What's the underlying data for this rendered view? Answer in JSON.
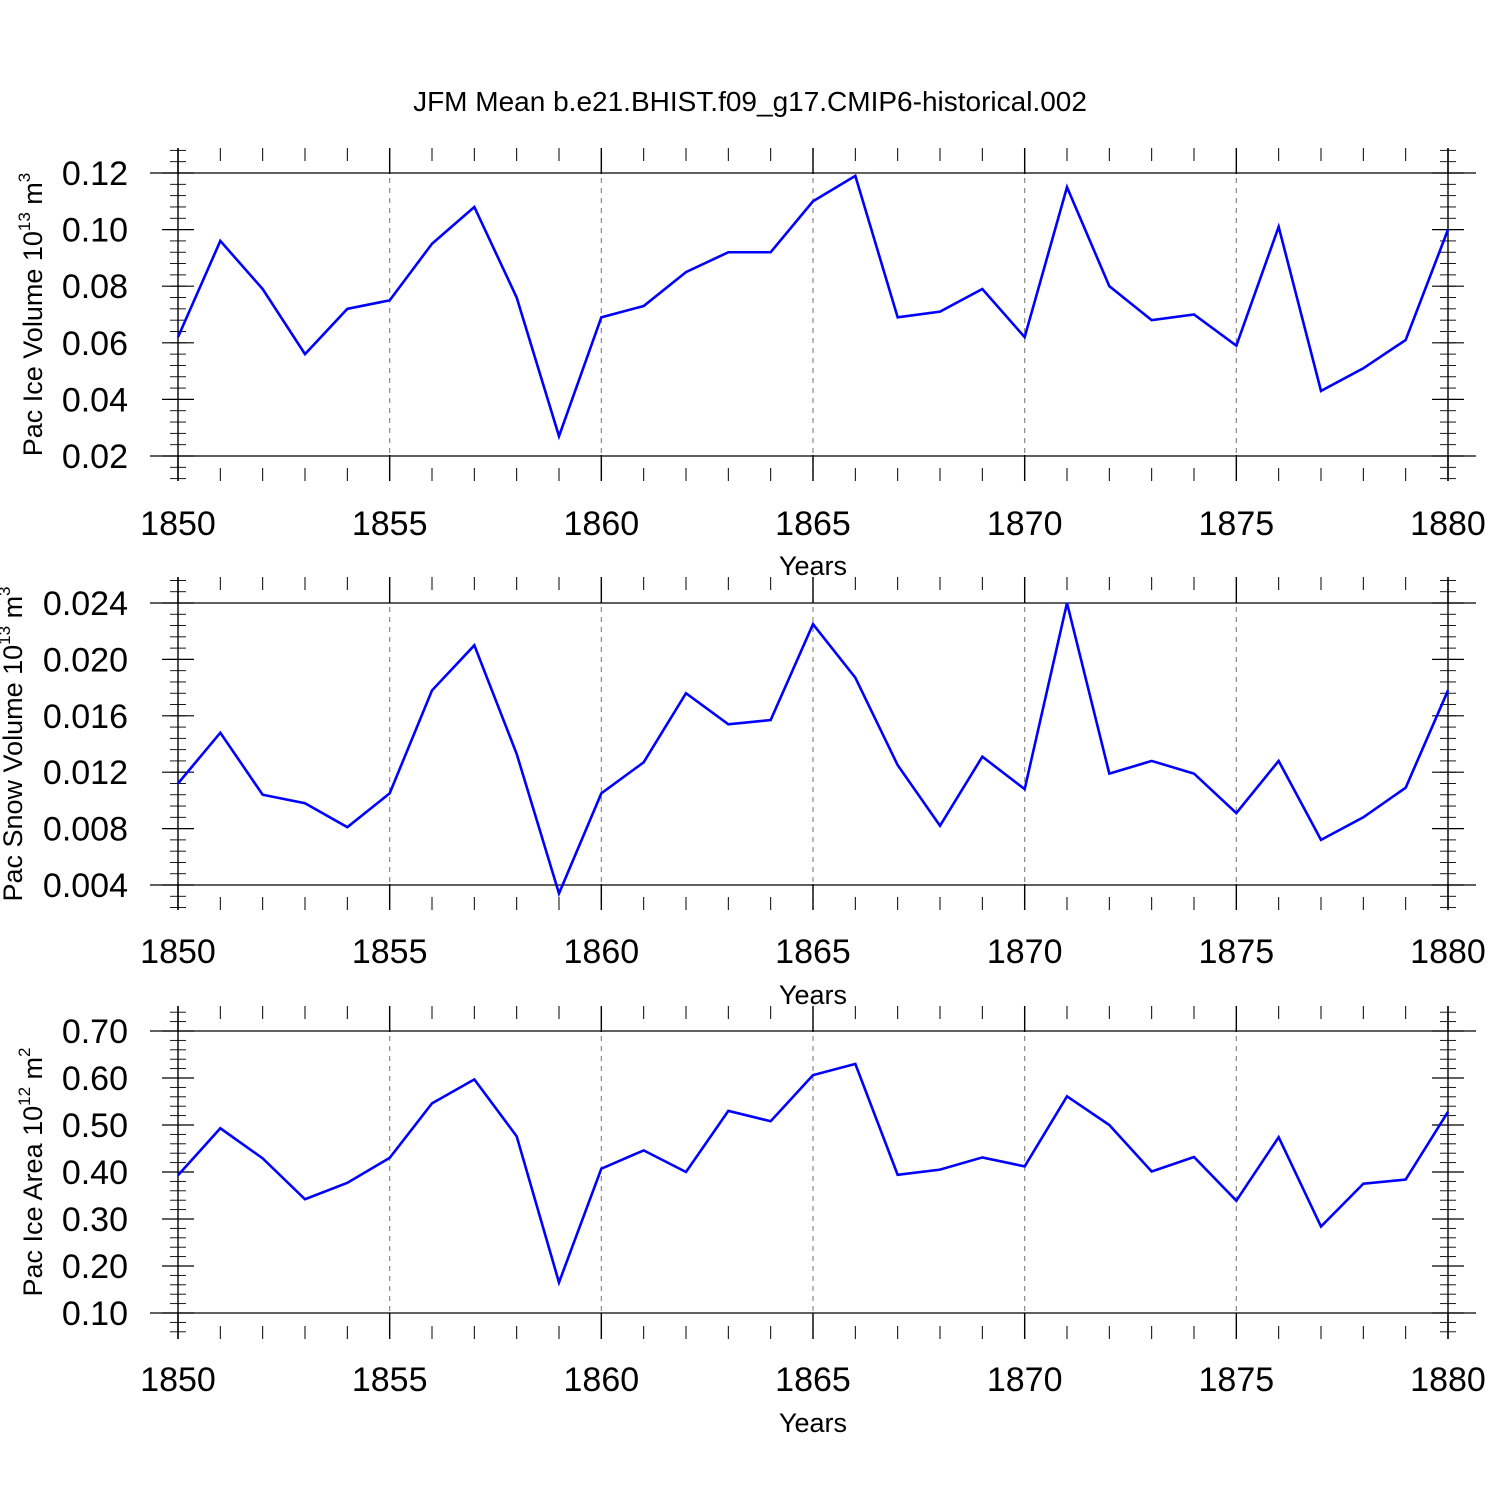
{
  "title": "JFM Mean b.e21.BHIST.f09_g17.CMIP6-historical.002",
  "colors": {
    "series": "#0000ff",
    "axis": "#000000",
    "grid": "#888888"
  },
  "chart_data": [
    {
      "type": "line",
      "title": "JFM Mean b.e21.BHIST.f09_g17.CMIP6-historical.002",
      "xlabel": "Years",
      "ylabel": {
        "text": "Pac Ice Volume 10",
        "exponent": "13",
        "unit": " m",
        "unit_exponent": "3"
      },
      "xlim": [
        1850,
        1880
      ],
      "ylim": [
        0.02,
        0.12
      ],
      "yticks": [
        "0.02",
        "0.04",
        "0.06",
        "0.08",
        "0.10",
        "0.12"
      ],
      "xticks": [
        "1850",
        "1855",
        "1860",
        "1865",
        "1870",
        "1875",
        "1880"
      ],
      "grid": "vertical dashed at major x ticks",
      "x": [
        1850,
        1851,
        1852,
        1853,
        1854,
        1855,
        1856,
        1857,
        1858,
        1859,
        1860,
        1861,
        1862,
        1863,
        1864,
        1865,
        1866,
        1867,
        1868,
        1869,
        1870,
        1871,
        1872,
        1873,
        1874,
        1875,
        1876,
        1877,
        1878,
        1879,
        1880
      ],
      "series": [
        {
          "values": [
            0.062,
            0.096,
            0.079,
            0.056,
            0.072,
            0.075,
            0.095,
            0.108,
            0.076,
            0.027,
            0.069,
            0.073,
            0.085,
            0.092,
            0.092,
            0.11,
            0.119,
            0.069,
            0.071,
            0.079,
            0.062,
            0.115,
            0.08,
            0.068,
            0.07,
            0.059,
            0.101,
            0.043,
            0.051,
            0.061,
            0.1
          ]
        }
      ]
    },
    {
      "type": "line",
      "xlabel": "Years",
      "ylabel": {
        "text": "Pac Snow Volume 10",
        "exponent": "13",
        "unit": " m",
        "unit_exponent": "3"
      },
      "xlim": [
        1850,
        1880
      ],
      "ylim": [
        0.003,
        0.024
      ],
      "yticks": [
        "0.004",
        "0.008",
        "0.012",
        "0.016",
        "0.020",
        "0.024"
      ],
      "xticks": [
        "1850",
        "1855",
        "1860",
        "1865",
        "1870",
        "1875",
        "1880"
      ],
      "grid": "vertical dashed at major x ticks",
      "x": [
        1850,
        1851,
        1852,
        1853,
        1854,
        1855,
        1856,
        1857,
        1858,
        1859,
        1860,
        1861,
        1862,
        1863,
        1864,
        1865,
        1866,
        1867,
        1868,
        1869,
        1870,
        1871,
        1872,
        1873,
        1874,
        1875,
        1876,
        1877,
        1878,
        1879,
        1880
      ],
      "series": [
        {
          "values": [
            0.0112,
            0.0148,
            0.0104,
            0.0098,
            0.0081,
            0.0105,
            0.0178,
            0.021,
            0.0133,
            0.0034,
            0.0105,
            0.0127,
            0.0176,
            0.0154,
            0.0157,
            0.0225,
            0.0187,
            0.0125,
            0.0082,
            0.0131,
            0.0108,
            0.024,
            0.0119,
            0.0128,
            0.0119,
            0.0091,
            0.0128,
            0.0072,
            0.0088,
            0.0109,
            0.0178
          ]
        }
      ]
    },
    {
      "type": "line",
      "xlabel": "Years",
      "ylabel": {
        "text": "Pac Ice Area 10",
        "exponent": "12",
        "unit": " m",
        "unit_exponent": "2"
      },
      "xlim": [
        1850,
        1880
      ],
      "ylim": [
        0.1,
        0.7
      ],
      "yticks": [
        "0.10",
        "0.20",
        "0.30",
        "0.40",
        "0.50",
        "0.60",
        "0.70"
      ],
      "xticks": [
        "1850",
        "1855",
        "1860",
        "1865",
        "1870",
        "1875",
        "1880"
      ],
      "grid": "vertical dashed at major x ticks",
      "x": [
        1850,
        1851,
        1852,
        1853,
        1854,
        1855,
        1856,
        1857,
        1858,
        1859,
        1860,
        1861,
        1862,
        1863,
        1864,
        1865,
        1866,
        1867,
        1868,
        1869,
        1870,
        1871,
        1872,
        1873,
        1874,
        1875,
        1876,
        1877,
        1878,
        1879,
        1880
      ],
      "series": [
        {
          "values": [
            0.393,
            0.493,
            0.429,
            0.342,
            0.377,
            0.43,
            0.546,
            0.597,
            0.476,
            0.165,
            0.407,
            0.446,
            0.4,
            0.53,
            0.508,
            0.606,
            0.63,
            0.394,
            0.405,
            0.431,
            0.412,
            0.561,
            0.5,
            0.401,
            0.432,
            0.339,
            0.474,
            0.284,
            0.375,
            0.384,
            0.528
          ]
        }
      ]
    }
  ]
}
